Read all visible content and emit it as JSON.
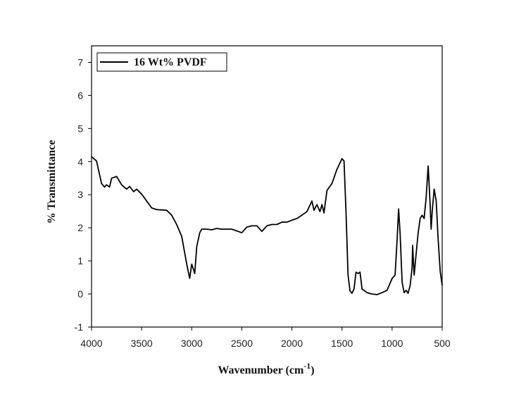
{
  "chart_data": {
    "type": "line",
    "xlabel_parts": [
      "Wavenumber (cm",
      "-1",
      ")"
    ],
    "ylabel": "% Transmittance",
    "xlim": [
      4000,
      500
    ],
    "xticks": [
      4000,
      3500,
      3000,
      2500,
      2000,
      1500,
      1000,
      500
    ],
    "ylim": [
      -1,
      7.5
    ],
    "yticks": [
      -1,
      0,
      1,
      2,
      3,
      4,
      5,
      6,
      7
    ],
    "legend": "top-left",
    "x": [
      4000,
      3950,
      3900,
      3870,
      3850,
      3820,
      3800,
      3750,
      3700,
      3650,
      3620,
      3580,
      3550,
      3500,
      3400,
      3350,
      3250,
      3200,
      3150,
      3100,
      3050,
      3020,
      3000,
      2970,
      2950,
      2920,
      2900,
      2850,
      2800,
      2750,
      2700,
      2600,
      2500,
      2450,
      2400,
      2350,
      2300,
      2250,
      2200,
      2150,
      2100,
      2050,
      2000,
      1950,
      1900,
      1850,
      1800,
      1780,
      1750,
      1720,
      1700,
      1680,
      1650,
      1600,
      1550,
      1500,
      1480,
      1460,
      1440,
      1420,
      1400,
      1380,
      1360,
      1340,
      1320,
      1300,
      1250,
      1200,
      1150,
      1100,
      1050,
      1000,
      970,
      950,
      935,
      920,
      900,
      880,
      860,
      840,
      820,
      800,
      795,
      780,
      760,
      740,
      720,
      700,
      680,
      660,
      640,
      620,
      610,
      600,
      580,
      560,
      540,
      520,
      500
    ],
    "series": [
      {
        "name": "16 Wt% PVDF",
        "color": "#000000",
        "values": [
          4.15,
          4.02,
          3.34,
          3.23,
          3.3,
          3.23,
          3.5,
          3.55,
          3.3,
          3.17,
          3.25,
          3.09,
          3.17,
          3.02,
          2.6,
          2.55,
          2.53,
          2.38,
          2.1,
          1.74,
          0.9,
          0.47,
          0.9,
          0.62,
          1.43,
          1.85,
          1.96,
          1.96,
          1.94,
          1.98,
          1.96,
          1.96,
          1.85,
          2.02,
          2.06,
          2.06,
          1.89,
          2.06,
          2.1,
          2.1,
          2.17,
          2.17,
          2.23,
          2.28,
          2.38,
          2.49,
          2.81,
          2.53,
          2.7,
          2.49,
          2.7,
          2.45,
          3.13,
          3.34,
          3.77,
          4.09,
          4.02,
          2.49,
          0.57,
          0.09,
          0.02,
          0.15,
          0.66,
          0.62,
          0.66,
          0.15,
          0.04,
          0,
          -0.02,
          0.04,
          0.11,
          0.47,
          0.57,
          1.64,
          2.57,
          1.85,
          0.36,
          0.04,
          0.11,
          0.02,
          0.26,
          0.79,
          1.47,
          0.57,
          1.21,
          1.85,
          2.28,
          2.38,
          2.28,
          2.91,
          3.87,
          2.7,
          1.96,
          2.49,
          3.17,
          2.81,
          1.64,
          0.68,
          0.26
        ]
      }
    ]
  }
}
